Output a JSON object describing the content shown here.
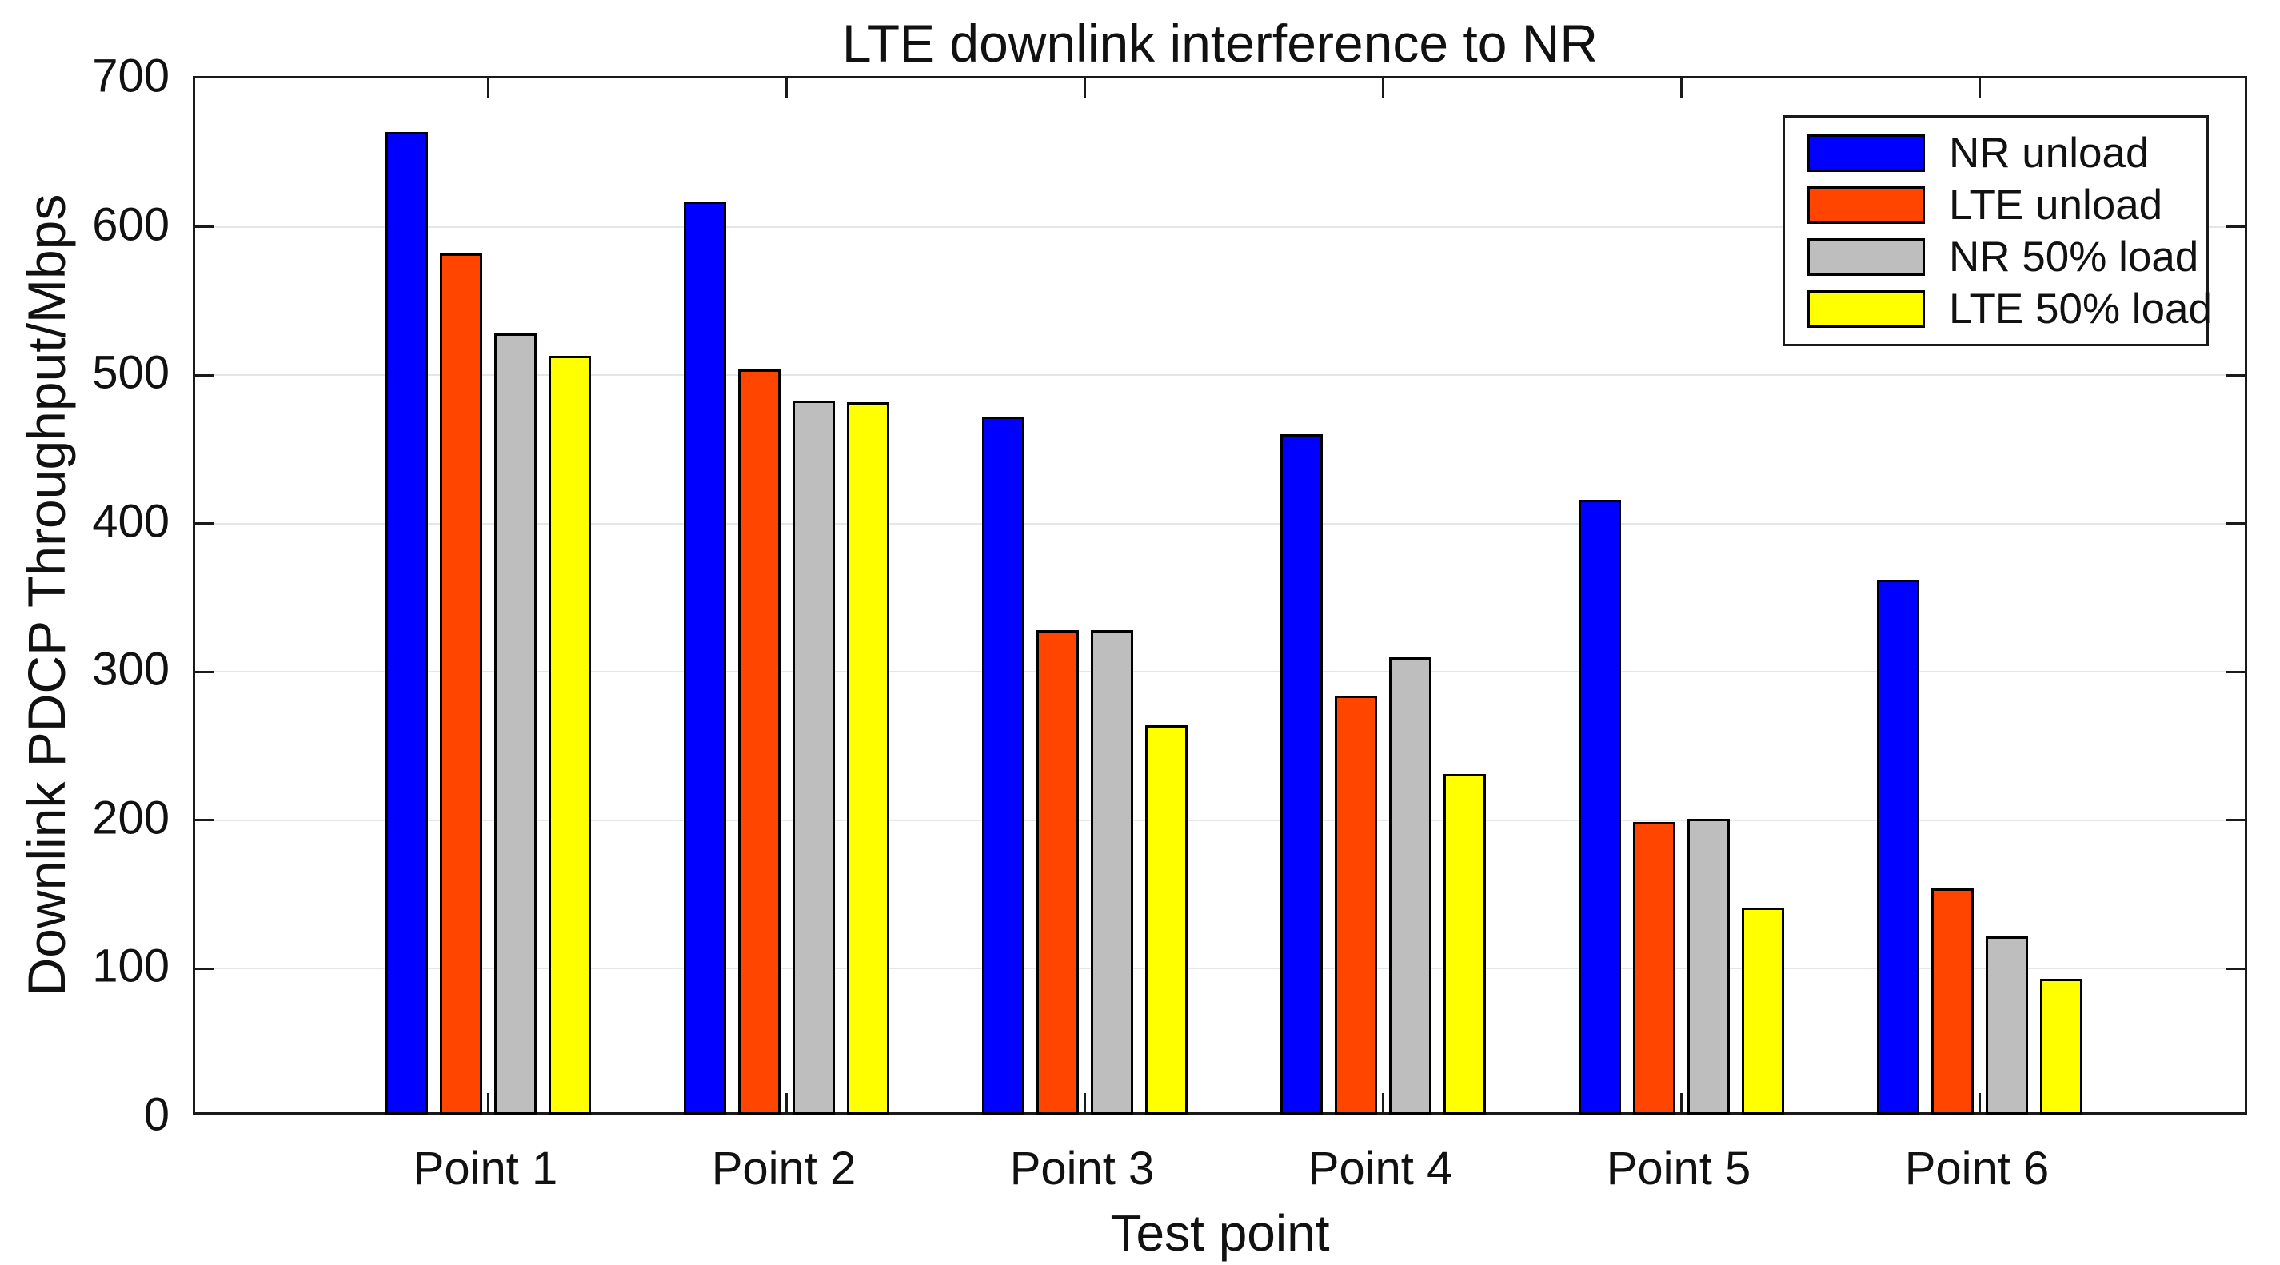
{
  "chart_data": {
    "type": "bar",
    "title": "LTE downlink interference to NR",
    "xlabel": "Test point",
    "ylabel": "Downlink PDCP Throughput/Mbps",
    "categories": [
      "Point 1",
      "Point 2",
      "Point 3",
      "Point 4",
      "Point 5",
      "Point 6"
    ],
    "series": [
      {
        "name": "NR unload",
        "color": "#0000ff",
        "values": [
          664,
          617,
          472,
          460,
          416,
          362
        ]
      },
      {
        "name": "LTE unload",
        "color": "#ff4500",
        "values": [
          582,
          504,
          328,
          284,
          199,
          154
        ]
      },
      {
        "name": "NR 50% load",
        "color": "#bebebe",
        "values": [
          528,
          483,
          328,
          310,
          201,
          122
        ]
      },
      {
        "name": "LTE 50% load",
        "color": "#ffff00",
        "values": [
          513,
          482,
          264,
          231,
          141,
          93
        ]
      }
    ],
    "ylim": [
      0,
      700
    ],
    "yticks": [
      0,
      100,
      200,
      300,
      400,
      500,
      600,
      700
    ],
    "grid": "horizontal",
    "gridline_color": "#e6e6e6",
    "bar_edge_color": "#000000",
    "axis_color": "#1a1a1a",
    "legend_position": "top-right"
  }
}
